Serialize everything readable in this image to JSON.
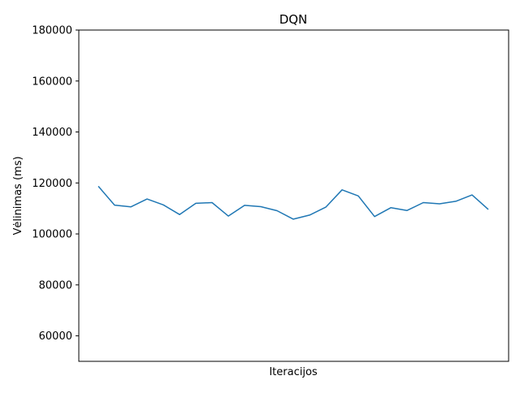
{
  "chart_data": {
    "type": "line",
    "title": "DQN",
    "xlabel": "Iteracijos",
    "ylabel": "Vėlinimas (ms)",
    "ylim": [
      50000,
      180000
    ],
    "yticks": [
      "60000",
      "80000",
      "100000",
      "120000",
      "140000",
      "160000",
      "180000"
    ],
    "ytick_values": [
      60000,
      80000,
      100000,
      120000,
      140000,
      160000,
      180000
    ],
    "xticks_visible": false,
    "grid": false,
    "line_color": "#1f77b4",
    "series": [
      {
        "values": [
          118700,
          111300,
          110600,
          113700,
          111400,
          107600,
          112000,
          112300,
          107000,
          111200,
          110700,
          109100,
          105800,
          107400,
          110500,
          117300,
          114900,
          106800,
          110300,
          109200,
          112300,
          111800,
          112800,
          115300,
          109600
        ]
      }
    ]
  }
}
